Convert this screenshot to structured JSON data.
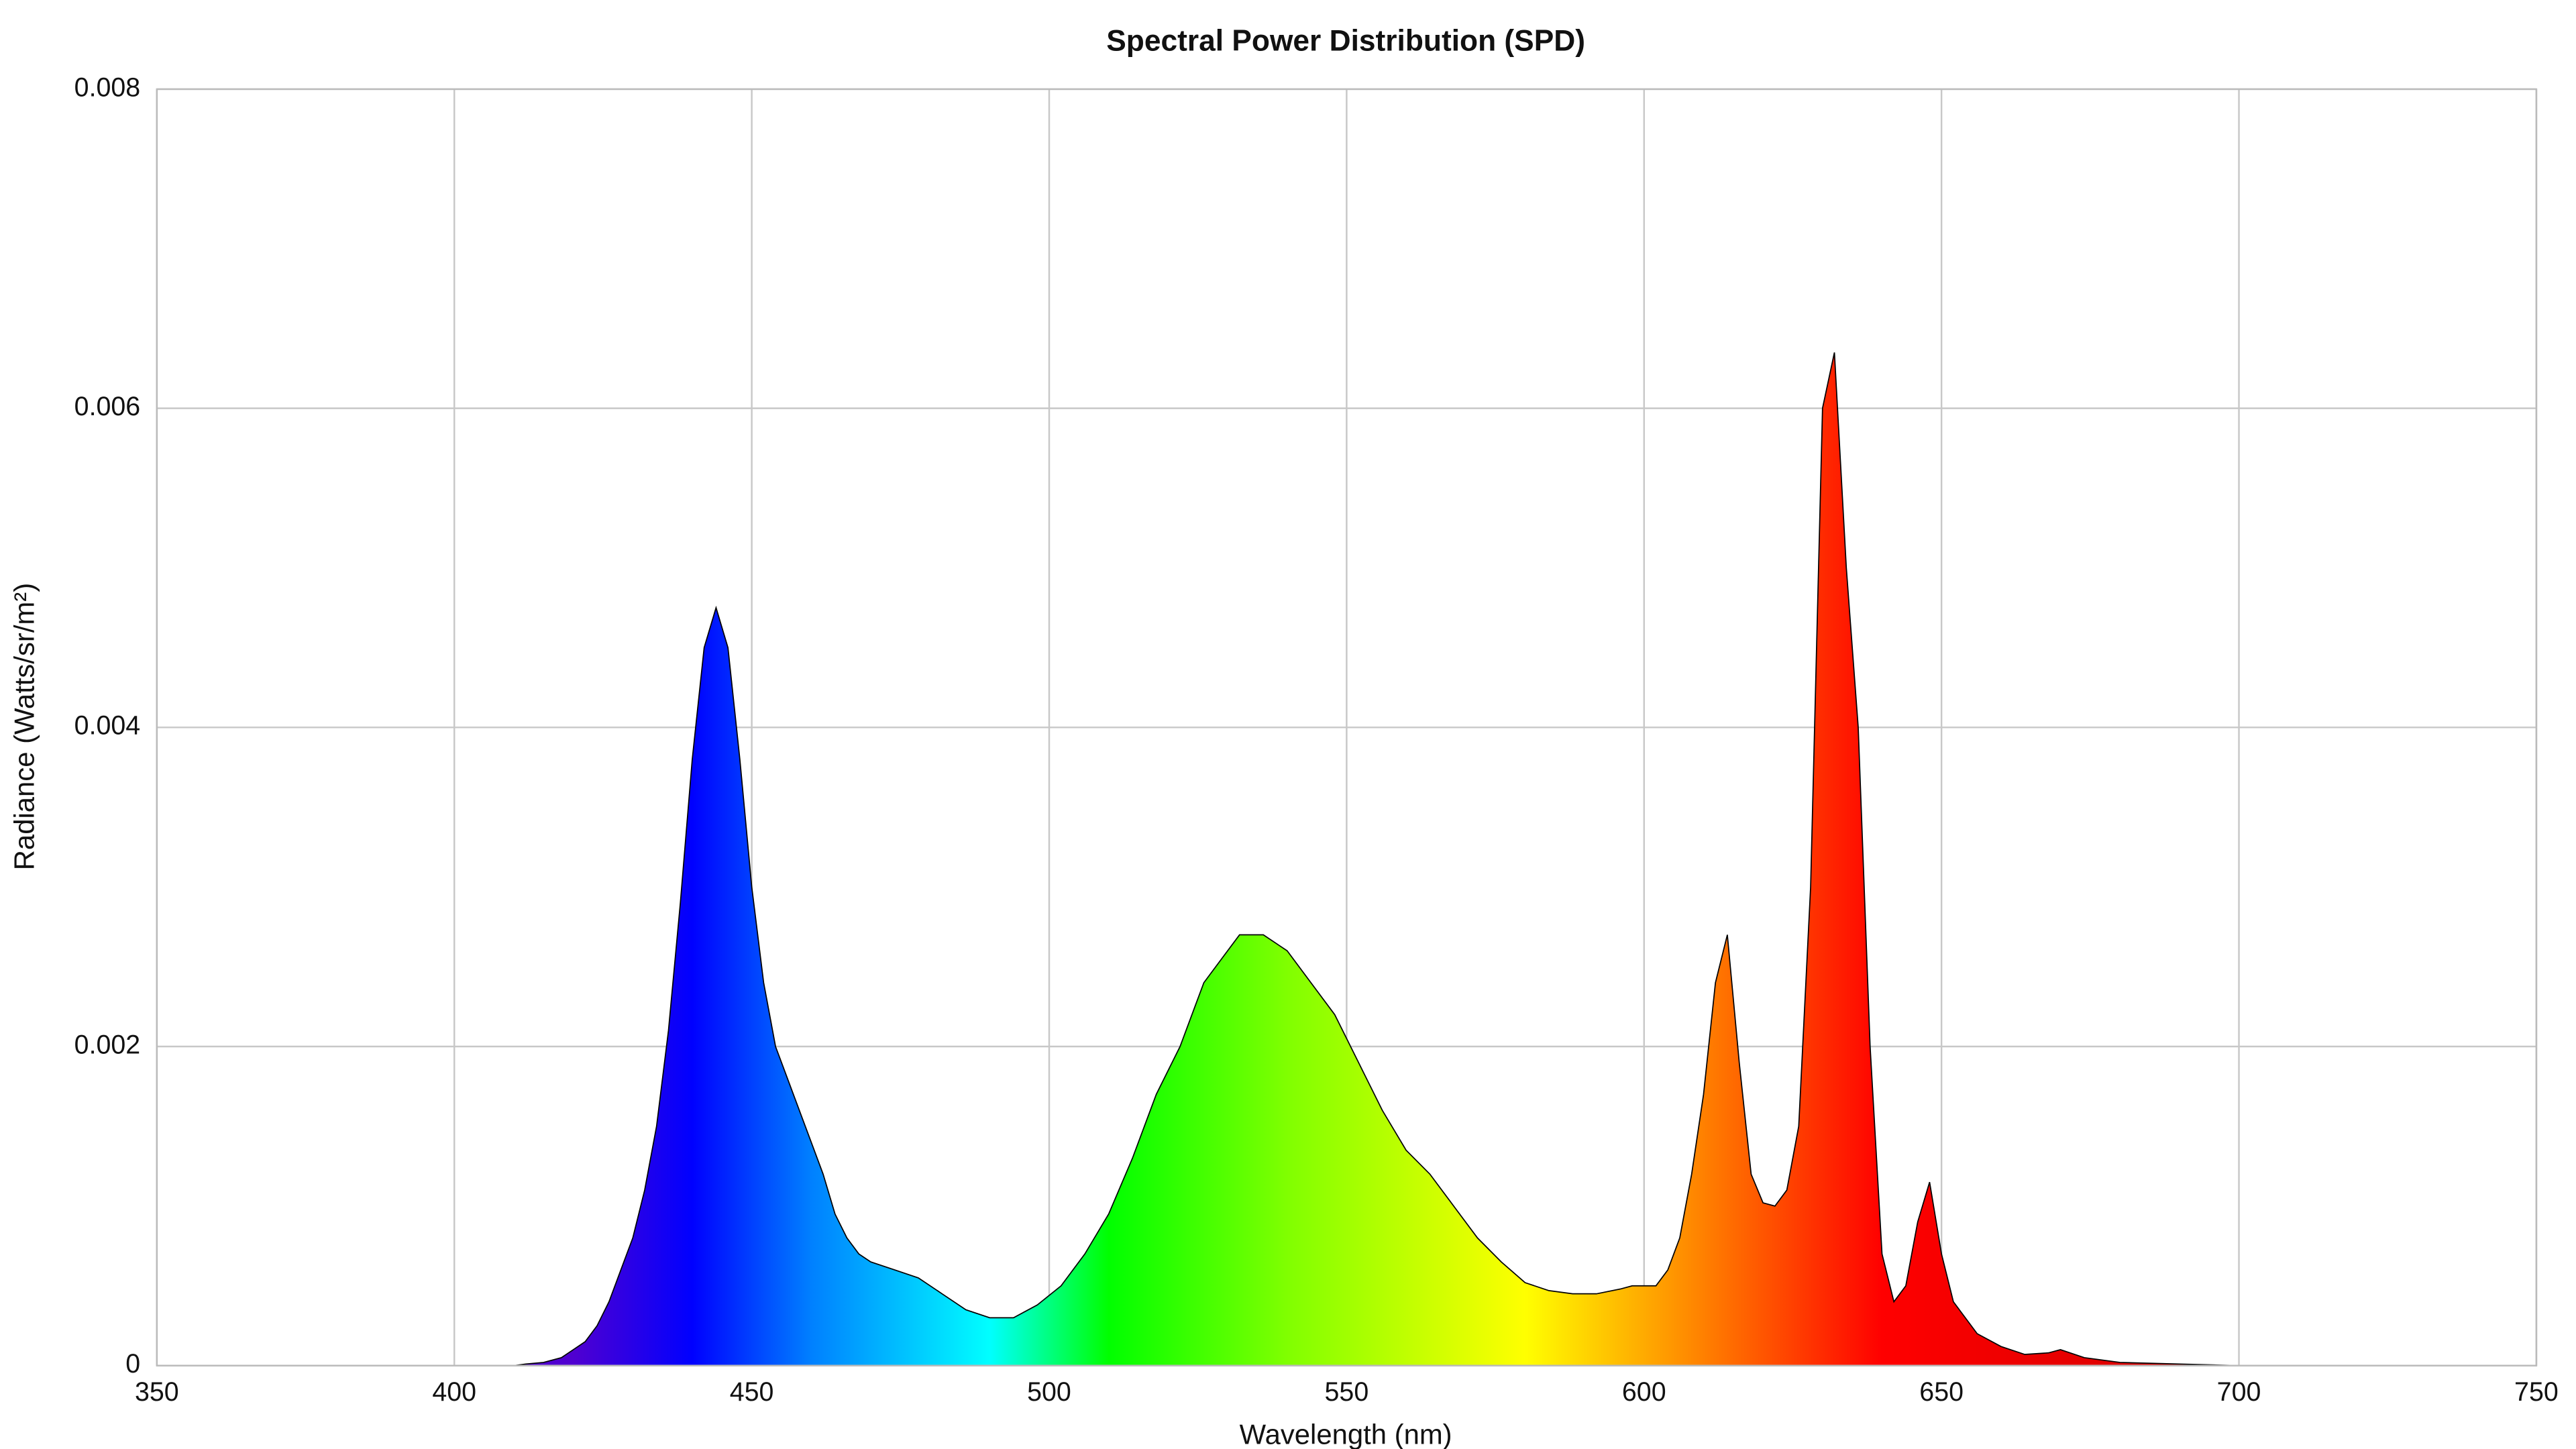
{
  "chart_data": {
    "type": "area",
    "title": "Spectral Power Distribution (SPD)",
    "x_label": "Wavelength (nm)",
    "y_label": "Radiance (Watts/sr/m²)",
    "x": [
      350,
      400,
      410,
      412,
      415,
      418,
      420,
      422,
      424,
      426,
      428,
      430,
      432,
      434,
      436,
      438,
      440,
      442,
      444,
      446,
      448,
      450,
      452,
      454,
      456,
      458,
      460,
      462,
      464,
      466,
      468,
      470,
      474,
      478,
      482,
      486,
      490,
      494,
      498,
      502,
      506,
      510,
      514,
      518,
      522,
      526,
      530,
      532,
      536,
      540,
      544,
      548,
      552,
      556,
      560,
      564,
      568,
      572,
      576,
      580,
      584,
      588,
      592,
      596,
      598,
      600,
      602,
      604,
      606,
      608,
      610,
      612,
      614,
      616,
      618,
      620,
      622,
      624,
      626,
      628,
      630,
      632,
      634,
      636,
      638,
      640,
      642,
      644,
      646,
      648,
      650,
      652,
      656,
      660,
      664,
      668,
      670,
      674,
      680,
      690,
      700,
      750
    ],
    "values": [
      0,
      0,
      0,
      1e-05,
      2e-05,
      5e-05,
      0.0001,
      0.00015,
      0.00025,
      0.0004,
      0.0006,
      0.0008,
      0.0011,
      0.0015,
      0.0021,
      0.0029,
      0.0038,
      0.0045,
      0.00475,
      0.0045,
      0.0038,
      0.003,
      0.0024,
      0.002,
      0.0018,
      0.0016,
      0.0014,
      0.0012,
      0.00095,
      0.0008,
      0.0007,
      0.00065,
      0.0006,
      0.00055,
      0.00045,
      0.00035,
      0.0003,
      0.0003,
      0.00038,
      0.0005,
      0.0007,
      0.00095,
      0.0013,
      0.0017,
      0.002,
      0.0024,
      0.0026,
      0.0027,
      0.0027,
      0.0026,
      0.0024,
      0.0022,
      0.0019,
      0.0016,
      0.00135,
      0.0012,
      0.001,
      0.0008,
      0.00065,
      0.00052,
      0.00047,
      0.00045,
      0.00045,
      0.00048,
      0.0005,
      0.0005,
      0.0005,
      0.0006,
      0.0008,
      0.0012,
      0.0017,
      0.0024,
      0.0027,
      0.0019,
      0.0012,
      0.00102,
      0.001,
      0.0011,
      0.0015,
      0.003,
      0.006,
      0.00635,
      0.005,
      0.004,
      0.002,
      0.0007,
      0.0004,
      0.0005,
      0.0009,
      0.00115,
      0.0007,
      0.0004,
      0.0002,
      0.00012,
      7e-05,
      8e-05,
      0.0001,
      5e-05,
      2e-05,
      1e-05,
      0,
      0
    ],
    "fill_stops": [
      [
        420,
        "#5000d0"
      ],
      [
        440,
        "#0000ff"
      ],
      [
        460,
        "#0080ff"
      ],
      [
        490,
        "#00ffff"
      ],
      [
        510,
        "#00ff00"
      ],
      [
        540,
        "#80ff00"
      ],
      [
        580,
        "#ffff00"
      ],
      [
        610,
        "#ff8000"
      ],
      [
        640,
        "#ff0000"
      ],
      [
        700,
        "#d00000"
      ]
    ],
    "line_color": "#000000",
    "xlim": [
      350,
      750
    ],
    "xticks": [
      350,
      400,
      450,
      500,
      550,
      600,
      650,
      700,
      750
    ],
    "ylim": [
      0,
      0.008
    ],
    "yticks": [
      0,
      0.002,
      0.004,
      0.006,
      0.008
    ],
    "grid": true
  }
}
